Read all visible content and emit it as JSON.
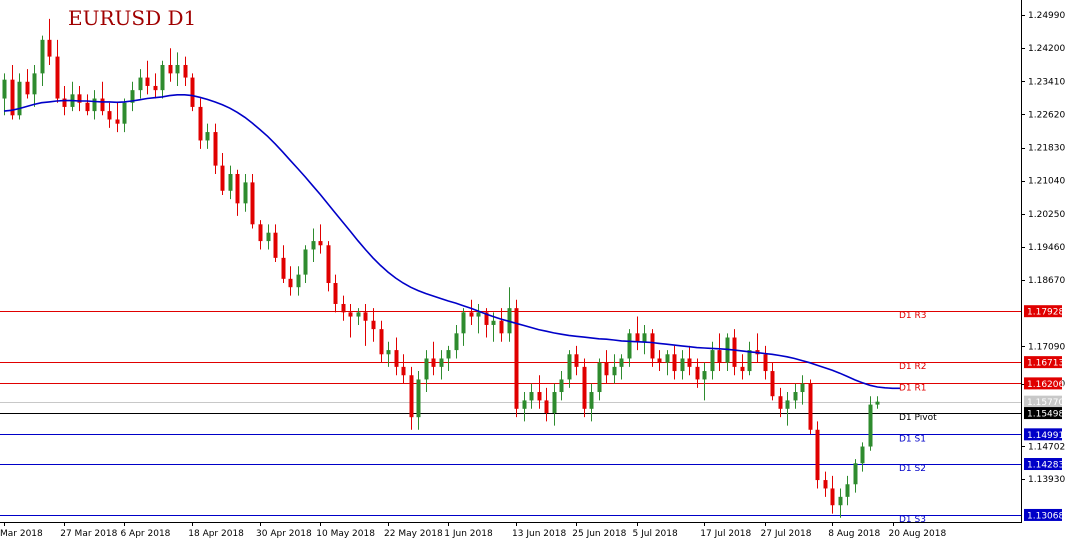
{
  "chart_data": {
    "type": "candlestick",
    "title": "EURUSD D1",
    "colors": {
      "up": "#2e8b2e",
      "down": "#e00000",
      "ma": "#0000c8",
      "resistance": "#e00000",
      "support": "#0000c8",
      "pivot": "#000000",
      "current": "#c8c8c8"
    },
    "ylim": [
      1.129,
      1.2535
    ],
    "y_ticks": [
      "1.24990",
      "1.24200",
      "1.23410",
      "1.22620",
      "1.21830",
      "1.21040",
      "1.20250",
      "1.19460",
      "1.18670",
      "1.17090",
      "1.16200",
      "1.14702",
      "1.13930"
    ],
    "x_ticks": [
      {
        "label": "Mar 2018",
        "index": 0
      },
      {
        "label": "27 Mar 2018",
        "index": 8
      },
      {
        "label": "6 Apr 2018",
        "index": 16
      },
      {
        "label": "18 Apr 2018",
        "index": 25
      },
      {
        "label": "30 Apr 2018",
        "index": 34
      },
      {
        "label": "10 May 2018",
        "index": 42
      },
      {
        "label": "22 May 2018",
        "index": 51
      },
      {
        "label": "1 Jun 2018",
        "index": 59
      },
      {
        "label": "13 Jun 2018",
        "index": 68
      },
      {
        "label": "25 Jun 2018",
        "index": 76
      },
      {
        "label": "5 Jul 2018",
        "index": 84
      },
      {
        "label": "17 Jul 2018",
        "index": 93
      },
      {
        "label": "27 Jul 2018",
        "index": 101
      },
      {
        "label": "8 Aug 2018",
        "index": 110
      },
      {
        "label": "20 Aug 2018",
        "index": 118
      }
    ],
    "candles": [
      {
        "o": 1.23,
        "h": 1.236,
        "l": 1.226,
        "c": 1.2345
      },
      {
        "o": 1.2345,
        "h": 1.238,
        "l": 1.225,
        "c": 1.226
      },
      {
        "o": 1.226,
        "h": 1.236,
        "l": 1.225,
        "c": 1.234
      },
      {
        "o": 1.234,
        "h": 1.237,
        "l": 1.23,
        "c": 1.231
      },
      {
        "o": 1.231,
        "h": 1.238,
        "l": 1.228,
        "c": 1.236
      },
      {
        "o": 1.236,
        "h": 1.245,
        "l": 1.233,
        "c": 1.244
      },
      {
        "o": 1.244,
        "h": 1.249,
        "l": 1.238,
        "c": 1.24
      },
      {
        "o": 1.24,
        "h": 1.244,
        "l": 1.229,
        "c": 1.23
      },
      {
        "o": 1.23,
        "h": 1.233,
        "l": 1.226,
        "c": 1.228
      },
      {
        "o": 1.228,
        "h": 1.234,
        "l": 1.227,
        "c": 1.231
      },
      {
        "o": 1.231,
        "h": 1.233,
        "l": 1.227,
        "c": 1.229
      },
      {
        "o": 1.229,
        "h": 1.231,
        "l": 1.226,
        "c": 1.227
      },
      {
        "o": 1.227,
        "h": 1.232,
        "l": 1.225,
        "c": 1.23
      },
      {
        "o": 1.23,
        "h": 1.234,
        "l": 1.226,
        "c": 1.227
      },
      {
        "o": 1.227,
        "h": 1.229,
        "l": 1.223,
        "c": 1.225
      },
      {
        "o": 1.225,
        "h": 1.229,
        "l": 1.222,
        "c": 1.224
      },
      {
        "o": 1.224,
        "h": 1.23,
        "l": 1.222,
        "c": 1.229
      },
      {
        "o": 1.229,
        "h": 1.234,
        "l": 1.227,
        "c": 1.232
      },
      {
        "o": 1.232,
        "h": 1.237,
        "l": 1.23,
        "c": 1.235
      },
      {
        "o": 1.235,
        "h": 1.239,
        "l": 1.231,
        "c": 1.233
      },
      {
        "o": 1.233,
        "h": 1.236,
        "l": 1.23,
        "c": 1.232
      },
      {
        "o": 1.232,
        "h": 1.239,
        "l": 1.23,
        "c": 1.238
      },
      {
        "o": 1.238,
        "h": 1.242,
        "l": 1.234,
        "c": 1.236
      },
      {
        "o": 1.236,
        "h": 1.241,
        "l": 1.233,
        "c": 1.238
      },
      {
        "o": 1.238,
        "h": 1.24,
        "l": 1.233,
        "c": 1.235
      },
      {
        "o": 1.235,
        "h": 1.236,
        "l": 1.227,
        "c": 1.228
      },
      {
        "o": 1.228,
        "h": 1.23,
        "l": 1.218,
        "c": 1.22
      },
      {
        "o": 1.22,
        "h": 1.224,
        "l": 1.218,
        "c": 1.222
      },
      {
        "o": 1.222,
        "h": 1.224,
        "l": 1.212,
        "c": 1.214
      },
      {
        "o": 1.214,
        "h": 1.217,
        "l": 1.207,
        "c": 1.208
      },
      {
        "o": 1.208,
        "h": 1.214,
        "l": 1.206,
        "c": 1.212
      },
      {
        "o": 1.212,
        "h": 1.213,
        "l": 1.202,
        "c": 1.205
      },
      {
        "o": 1.205,
        "h": 1.212,
        "l": 1.203,
        "c": 1.21
      },
      {
        "o": 1.21,
        "h": 1.212,
        "l": 1.199,
        "c": 1.2
      },
      {
        "o": 1.2,
        "h": 1.201,
        "l": 1.194,
        "c": 1.196
      },
      {
        "o": 1.196,
        "h": 1.2,
        "l": 1.194,
        "c": 1.198
      },
      {
        "o": 1.198,
        "h": 1.2,
        "l": 1.191,
        "c": 1.192
      },
      {
        "o": 1.192,
        "h": 1.195,
        "l": 1.186,
        "c": 1.187
      },
      {
        "o": 1.187,
        "h": 1.19,
        "l": 1.183,
        "c": 1.185
      },
      {
        "o": 1.185,
        "h": 1.19,
        "l": 1.183,
        "c": 1.188
      },
      {
        "o": 1.188,
        "h": 1.195,
        "l": 1.186,
        "c": 1.194
      },
      {
        "o": 1.194,
        "h": 1.199,
        "l": 1.191,
        "c": 1.196
      },
      {
        "o": 1.196,
        "h": 1.2,
        "l": 1.193,
        "c": 1.195
      },
      {
        "o": 1.195,
        "h": 1.196,
        "l": 1.184,
        "c": 1.186
      },
      {
        "o": 1.186,
        "h": 1.188,
        "l": 1.179,
        "c": 1.181
      },
      {
        "o": 1.181,
        "h": 1.183,
        "l": 1.177,
        "c": 1.179
      },
      {
        "o": 1.179,
        "h": 1.181,
        "l": 1.173,
        "c": 1.178
      },
      {
        "o": 1.178,
        "h": 1.18,
        "l": 1.176,
        "c": 1.179
      },
      {
        "o": 1.179,
        "h": 1.181,
        "l": 1.171,
        "c": 1.177
      },
      {
        "o": 1.177,
        "h": 1.18,
        "l": 1.172,
        "c": 1.175
      },
      {
        "o": 1.175,
        "h": 1.177,
        "l": 1.167,
        "c": 1.169
      },
      {
        "o": 1.169,
        "h": 1.172,
        "l": 1.166,
        "c": 1.17
      },
      {
        "o": 1.17,
        "h": 1.173,
        "l": 1.164,
        "c": 1.166
      },
      {
        "o": 1.166,
        "h": 1.169,
        "l": 1.162,
        "c": 1.164
      },
      {
        "o": 1.164,
        "h": 1.166,
        "l": 1.151,
        "c": 1.154
      },
      {
        "o": 1.154,
        "h": 1.165,
        "l": 1.151,
        "c": 1.163
      },
      {
        "o": 1.163,
        "h": 1.17,
        "l": 1.16,
        "c": 1.168
      },
      {
        "o": 1.168,
        "h": 1.172,
        "l": 1.164,
        "c": 1.166
      },
      {
        "o": 1.166,
        "h": 1.17,
        "l": 1.163,
        "c": 1.168
      },
      {
        "o": 1.168,
        "h": 1.171,
        "l": 1.165,
        "c": 1.17
      },
      {
        "o": 1.17,
        "h": 1.176,
        "l": 1.168,
        "c": 1.174
      },
      {
        "o": 1.174,
        "h": 1.18,
        "l": 1.171,
        "c": 1.179
      },
      {
        "o": 1.179,
        "h": 1.182,
        "l": 1.176,
        "c": 1.178
      },
      {
        "o": 1.178,
        "h": 1.181,
        "l": 1.174,
        "c": 1.179
      },
      {
        "o": 1.179,
        "h": 1.18,
        "l": 1.173,
        "c": 1.176
      },
      {
        "o": 1.176,
        "h": 1.179,
        "l": 1.172,
        "c": 1.177
      },
      {
        "o": 1.177,
        "h": 1.18,
        "l": 1.172,
        "c": 1.174
      },
      {
        "o": 1.174,
        "h": 1.185,
        "l": 1.172,
        "c": 1.18
      },
      {
        "o": 1.18,
        "h": 1.182,
        "l": 1.154,
        "c": 1.156
      },
      {
        "o": 1.156,
        "h": 1.16,
        "l": 1.153,
        "c": 1.158
      },
      {
        "o": 1.158,
        "h": 1.162,
        "l": 1.156,
        "c": 1.16
      },
      {
        "o": 1.16,
        "h": 1.164,
        "l": 1.156,
        "c": 1.158
      },
      {
        "o": 1.158,
        "h": 1.161,
        "l": 1.153,
        "c": 1.155
      },
      {
        "o": 1.155,
        "h": 1.162,
        "l": 1.152,
        "c": 1.16
      },
      {
        "o": 1.16,
        "h": 1.165,
        "l": 1.158,
        "c": 1.163
      },
      {
        "o": 1.163,
        "h": 1.17,
        "l": 1.161,
        "c": 1.169
      },
      {
        "o": 1.169,
        "h": 1.171,
        "l": 1.164,
        "c": 1.166
      },
      {
        "o": 1.166,
        "h": 1.168,
        "l": 1.154,
        "c": 1.156
      },
      {
        "o": 1.156,
        "h": 1.162,
        "l": 1.153,
        "c": 1.16
      },
      {
        "o": 1.16,
        "h": 1.168,
        "l": 1.158,
        "c": 1.167
      },
      {
        "o": 1.167,
        "h": 1.17,
        "l": 1.162,
        "c": 1.164
      },
      {
        "o": 1.164,
        "h": 1.169,
        "l": 1.162,
        "c": 1.166
      },
      {
        "o": 1.166,
        "h": 1.169,
        "l": 1.163,
        "c": 1.168
      },
      {
        "o": 1.168,
        "h": 1.175,
        "l": 1.166,
        "c": 1.174
      },
      {
        "o": 1.174,
        "h": 1.178,
        "l": 1.17,
        "c": 1.172
      },
      {
        "o": 1.172,
        "h": 1.176,
        "l": 1.169,
        "c": 1.174
      },
      {
        "o": 1.174,
        "h": 1.175,
        "l": 1.166,
        "c": 1.168
      },
      {
        "o": 1.168,
        "h": 1.17,
        "l": 1.165,
        "c": 1.167
      },
      {
        "o": 1.167,
        "h": 1.17,
        "l": 1.164,
        "c": 1.169
      },
      {
        "o": 1.169,
        "h": 1.171,
        "l": 1.163,
        "c": 1.165
      },
      {
        "o": 1.165,
        "h": 1.17,
        "l": 1.163,
        "c": 1.168
      },
      {
        "o": 1.168,
        "h": 1.171,
        "l": 1.164,
        "c": 1.166
      },
      {
        "o": 1.166,
        "h": 1.168,
        "l": 1.161,
        "c": 1.163
      },
      {
        "o": 1.163,
        "h": 1.167,
        "l": 1.158,
        "c": 1.165
      },
      {
        "o": 1.165,
        "h": 1.172,
        "l": 1.163,
        "c": 1.17
      },
      {
        "o": 1.17,
        "h": 1.174,
        "l": 1.165,
        "c": 1.167
      },
      {
        "o": 1.167,
        "h": 1.174,
        "l": 1.165,
        "c": 1.173
      },
      {
        "o": 1.173,
        "h": 1.175,
        "l": 1.164,
        "c": 1.166
      },
      {
        "o": 1.166,
        "h": 1.169,
        "l": 1.163,
        "c": 1.165
      },
      {
        "o": 1.165,
        "h": 1.172,
        "l": 1.164,
        "c": 1.17
      },
      {
        "o": 1.17,
        "h": 1.174,
        "l": 1.167,
        "c": 1.169
      },
      {
        "o": 1.169,
        "h": 1.171,
        "l": 1.163,
        "c": 1.165
      },
      {
        "o": 1.165,
        "h": 1.167,
        "l": 1.158,
        "c": 1.159
      },
      {
        "o": 1.159,
        "h": 1.161,
        "l": 1.154,
        "c": 1.156
      },
      {
        "o": 1.156,
        "h": 1.16,
        "l": 1.152,
        "c": 1.158
      },
      {
        "o": 1.158,
        "h": 1.162,
        "l": 1.156,
        "c": 1.16
      },
      {
        "o": 1.16,
        "h": 1.164,
        "l": 1.157,
        "c": 1.162
      },
      {
        "o": 1.162,
        "h": 1.163,
        "l": 1.15,
        "c": 1.151
      },
      {
        "o": 1.151,
        "h": 1.153,
        "l": 1.137,
        "c": 1.139
      },
      {
        "o": 1.139,
        "h": 1.141,
        "l": 1.135,
        "c": 1.137
      },
      {
        "o": 1.137,
        "h": 1.14,
        "l": 1.131,
        "c": 1.133
      },
      {
        "o": 1.133,
        "h": 1.137,
        "l": 1.13,
        "c": 1.135
      },
      {
        "o": 1.135,
        "h": 1.14,
        "l": 1.133,
        "c": 1.138
      },
      {
        "o": 1.138,
        "h": 1.144,
        "l": 1.136,
        "c": 1.143
      },
      {
        "o": 1.143,
        "h": 1.148,
        "l": 1.141,
        "c": 1.147
      },
      {
        "o": 1.147,
        "h": 1.159,
        "l": 1.146,
        "c": 1.157
      },
      {
        "o": 1.157,
        "h": 1.159,
        "l": 1.156,
        "c": 1.1577
      }
    ],
    "ma_line": [
      1.227,
      1.2272,
      1.2276,
      1.2281,
      1.2286,
      1.229,
      1.2292,
      1.2294,
      1.2295,
      1.2295,
      1.2294,
      1.2294,
      1.2293,
      1.2292,
      1.2292,
      1.2291,
      1.2292,
      1.2294,
      1.2297,
      1.23,
      1.2302,
      1.2304,
      1.2307,
      1.2309,
      1.2309,
      1.2307,
      1.2303,
      1.2298,
      1.2292,
      1.2285,
      1.2277,
      1.2267,
      1.2255,
      1.2241,
      1.2226,
      1.221,
      1.2192,
      1.2173,
      1.2153,
      1.2133,
      1.2113,
      1.2092,
      1.2071,
      1.2049,
      1.2027,
      1.2005,
      1.1983,
      1.1961,
      1.194,
      1.192,
      1.1902,
      1.1886,
      1.1872,
      1.186,
      1.185,
      1.1842,
      1.1835,
      1.1829,
      1.1823,
      1.1817,
      1.1812,
      1.1806,
      1.18,
      1.1793,
      1.1786,
      1.178,
      1.1774,
      1.1769,
      1.1764,
      1.1759,
      1.1754,
      1.1749,
      1.1745,
      1.1741,
      1.1738,
      1.1735,
      1.1733,
      1.1731,
      1.1729,
      1.1727,
      1.1726,
      1.1724,
      1.1722,
      1.1721,
      1.172,
      1.1719,
      1.1718,
      1.1716,
      1.1714,
      1.1712,
      1.171,
      1.1708,
      1.1706,
      1.1705,
      1.1704,
      1.1703,
      1.1702,
      1.17,
      1.1698,
      1.1696,
      1.1694,
      1.1692,
      1.169,
      1.1687,
      1.1684,
      1.168,
      1.1675,
      1.167,
      1.1664,
      1.1658,
      1.1652,
      1.1645,
      1.1637,
      1.1629,
      1.1622,
      1.1616,
      1.1612,
      1.161,
      1.1609,
      1.1609
    ],
    "levels": [
      {
        "name": "D1 R3",
        "value": 1.17928,
        "tag": "1.17928",
        "kind": "resistance"
      },
      {
        "name": "D1 R2",
        "value": 1.16713,
        "tag": "1.16713",
        "kind": "resistance"
      },
      {
        "name": "D1 R1",
        "value": 1.16206,
        "tag": "1.16206",
        "kind": "resistance"
      },
      {
        "name": "D1 Pivot",
        "value": 1.15498,
        "tag": "1.15498",
        "kind": "pivot"
      },
      {
        "name": "D1 S1",
        "value": 1.14991,
        "tag": "1.14991",
        "kind": "support"
      },
      {
        "name": "D1 S2",
        "value": 1.14283,
        "tag": "1.14283",
        "kind": "support"
      },
      {
        "name": "D1 S3",
        "value": 1.13068,
        "tag": "1.13068",
        "kind": "support"
      }
    ],
    "current_price": {
      "value": 1.1577,
      "tag": "1.15770"
    }
  }
}
